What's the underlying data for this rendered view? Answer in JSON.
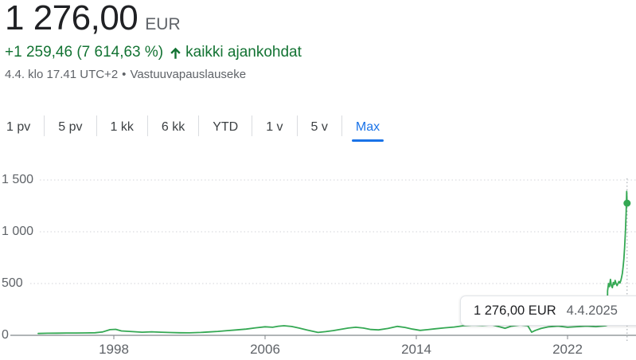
{
  "header": {
    "price": "1 276,00",
    "currency": "EUR",
    "change_text": "+1 259,46 (7 614,63 %)",
    "arrow_icon": "arrow-upward",
    "change_period": "kaikki ajankohdat",
    "datetime": "4.4. klo 17.41 UTC+2",
    "separator": "•",
    "disclaimer": "Vastuuvapauslauseke"
  },
  "tabs": {
    "items": [
      {
        "label": "1 pv",
        "selected": false
      },
      {
        "label": "5 pv",
        "selected": false
      },
      {
        "label": "1 kk",
        "selected": false
      },
      {
        "label": "6 kk",
        "selected": false
      },
      {
        "label": "YTD",
        "selected": false
      },
      {
        "label": "1 v",
        "selected": false
      },
      {
        "label": "5 v",
        "selected": false
      },
      {
        "label": "Max",
        "selected": true
      }
    ]
  },
  "colors": {
    "line_green": "#34a853",
    "text_green": "#137333",
    "tab_active_blue": "#1a73e8",
    "text_primary": "#202124",
    "text_secondary": "#5f6368",
    "grid_gray": "#dadce0",
    "axis_gray": "#80868b",
    "crosshair_gray": "#9aa0a6"
  },
  "chart_data": {
    "type": "line",
    "title": "",
    "xlabel": "",
    "ylabel": "",
    "x_range": [
      1994,
      2025.2
    ],
    "y_range": [
      0,
      1620
    ],
    "grid": "dotted-horizontal",
    "legend": "none",
    "y_ticks": [
      {
        "label": "1 500",
        "value": 1500
      },
      {
        "label": "1 000",
        "value": 1000
      },
      {
        "label": "500",
        "value": 500
      },
      {
        "label": "0",
        "value": 0
      }
    ],
    "x_ticks": [
      {
        "label": "1998",
        "year": 1998
      },
      {
        "label": "2006",
        "year": 2006
      },
      {
        "label": "2014",
        "year": 2014
      },
      {
        "label": "2022",
        "year": 2022
      }
    ],
    "tooltip": {
      "value": "1 276,00 EUR",
      "date": "4.4.2025"
    },
    "endpoint": {
      "year": 2025.15,
      "value": 1276
    },
    "series": [
      {
        "name": "price-eur",
        "color": "#34a853",
        "points": [
          [
            1994,
            18
          ],
          [
            1994.5,
            20
          ],
          [
            1995,
            21
          ],
          [
            1995.5,
            22
          ],
          [
            1996,
            22
          ],
          [
            1996.5,
            23
          ],
          [
            1997,
            25
          ],
          [
            1997.4,
            32
          ],
          [
            1997.8,
            55
          ],
          [
            1998.1,
            58
          ],
          [
            1998.4,
            42
          ],
          [
            1999,
            35
          ],
          [
            1999.5,
            30
          ],
          [
            2000,
            34
          ],
          [
            2000.5,
            30
          ],
          [
            2001,
            27
          ],
          [
            2001.5,
            25
          ],
          [
            2002,
            24
          ],
          [
            2002.6,
            28
          ],
          [
            2003,
            32
          ],
          [
            2003.5,
            38
          ],
          [
            2004,
            45
          ],
          [
            2004.5,
            52
          ],
          [
            2005,
            60
          ],
          [
            2005.5,
            72
          ],
          [
            2006,
            82
          ],
          [
            2006.4,
            78
          ],
          [
            2006.7,
            88
          ],
          [
            2007,
            92
          ],
          [
            2007.4,
            85
          ],
          [
            2007.8,
            70
          ],
          [
            2008.2,
            52
          ],
          [
            2008.8,
            28
          ],
          [
            2009.2,
            35
          ],
          [
            2009.6,
            45
          ],
          [
            2010,
            58
          ],
          [
            2010.4,
            70
          ],
          [
            2010.8,
            78
          ],
          [
            2011.2,
            70
          ],
          [
            2011.6,
            56
          ],
          [
            2012,
            52
          ],
          [
            2012.5,
            66
          ],
          [
            2013,
            86
          ],
          [
            2013.4,
            76
          ],
          [
            2013.8,
            60
          ],
          [
            2014.2,
            48
          ],
          [
            2014.6,
            55
          ],
          [
            2015,
            63
          ],
          [
            2015.5,
            72
          ],
          [
            2016,
            80
          ],
          [
            2016.5,
            92
          ],
          [
            2017,
            99
          ],
          [
            2017.5,
            95
          ],
          [
            2018,
            101
          ],
          [
            2018.4,
            82
          ],
          [
            2018.7,
            68
          ],
          [
            2019,
            88
          ],
          [
            2019.5,
            100
          ],
          [
            2019.9,
            92
          ],
          [
            2020.1,
            30
          ],
          [
            2020.3,
            48
          ],
          [
            2020.6,
            66
          ],
          [
            2021,
            82
          ],
          [
            2021.5,
            90
          ],
          [
            2022,
            78
          ],
          [
            2022.5,
            84
          ],
          [
            2023,
            90
          ],
          [
            2023.5,
            84
          ],
          [
            2024,
            92
          ],
          [
            2024.1,
            98
          ],
          [
            2024.12,
            430
          ],
          [
            2024.17,
            500
          ],
          [
            2024.22,
            470
          ],
          [
            2024.27,
            540
          ],
          [
            2024.32,
            480
          ],
          [
            2024.37,
            460
          ],
          [
            2024.42,
            510
          ],
          [
            2024.47,
            490
          ],
          [
            2024.52,
            530
          ],
          [
            2024.57,
            500
          ],
          [
            2024.62,
            480
          ],
          [
            2024.67,
            500
          ],
          [
            2024.72,
            520
          ],
          [
            2024.77,
            505
          ],
          [
            2024.82,
            530
          ],
          [
            2024.86,
            560
          ],
          [
            2024.9,
            600
          ],
          [
            2024.94,
            660
          ],
          [
            2024.98,
            740
          ],
          [
            2025.02,
            850
          ],
          [
            2025.06,
            1000
          ],
          [
            2025.1,
            1180
          ],
          [
            2025.13,
            1390
          ],
          [
            2025.15,
            1276
          ]
        ]
      }
    ]
  }
}
